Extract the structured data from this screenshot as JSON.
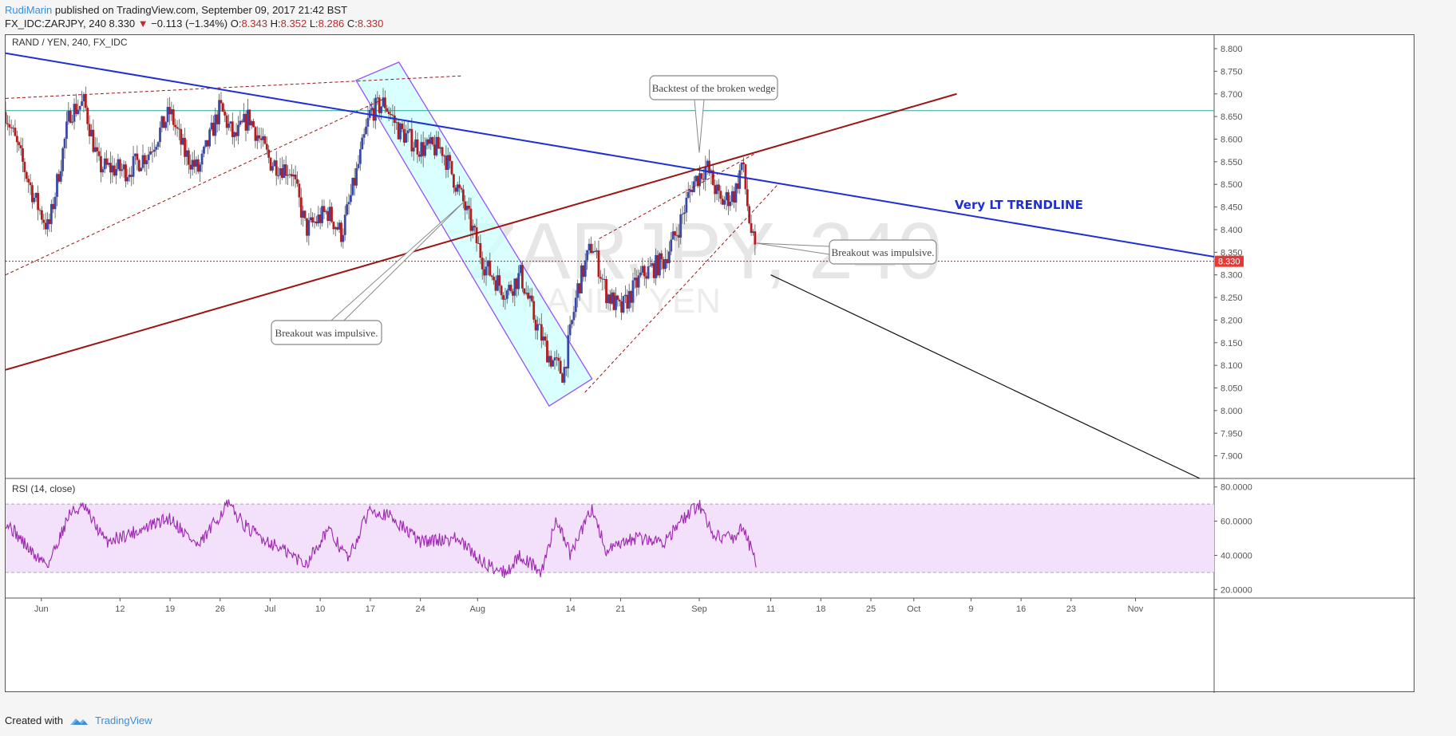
{
  "header": {
    "author": "RudiMarin",
    "published": "published on TradingView.com, September 09, 2017 21:42 BST",
    "symbol_line": "FX_IDC:ZARJPY, 240",
    "last": "8.330",
    "change": "−0.113 (−1.34%)",
    "o_label": "O:",
    "o": "8.343",
    "h_label": "H:",
    "h": "8.352",
    "l_label": "L:",
    "l": "8.286",
    "c_label": "C:",
    "c": "8.330"
  },
  "footer": {
    "created_with": "Created with",
    "brand": "TradingView"
  },
  "colors": {
    "up": "#3949ab",
    "down": "#b71c1c",
    "blue_trend": "#1f2fd4",
    "red_trend": "#9c1414",
    "channel": "#9b4dff",
    "channel_fill": "#ccffff",
    "rsi": "#9c27b0",
    "rsi_band": "#f3e0fb"
  },
  "chart_data": {
    "type": "candlestick",
    "title": "RAND / YEN, 240, FX_IDC",
    "watermark": "ZARJPY, 240",
    "watermark_sub": "RAND / YEN",
    "price_axis": {
      "ylim": [
        7.85,
        8.83
      ],
      "ticks": [
        "8.800",
        "8.750",
        "8.700",
        "8.650",
        "8.600",
        "8.550",
        "8.500",
        "8.450",
        "8.400",
        "8.350",
        "8.300",
        "8.250",
        "8.200",
        "8.150",
        "8.100",
        "8.050",
        "8.000",
        "7.950",
        "7.900"
      ]
    },
    "time_axis": {
      "labels": [
        "Jun",
        "12",
        "19",
        "26",
        "Jul",
        "10",
        "17",
        "24",
        "Aug",
        "14",
        "21",
        "Sep",
        "11",
        "18",
        "25",
        "Oct",
        "9",
        "16",
        "23",
        "Nov"
      ],
      "start": "2017-05-27",
      "end": "2017-11-12"
    },
    "last_price": "8.330",
    "approx_close_path": [
      {
        "date": "2017-05-27",
        "close": 8.66
      },
      {
        "date": "2017-05-31",
        "close": 8.47
      },
      {
        "date": "2017-06-02",
        "close": 8.4
      },
      {
        "date": "2017-06-05",
        "close": 8.66
      },
      {
        "date": "2017-06-07",
        "close": 8.68
      },
      {
        "date": "2017-06-09",
        "close": 8.54
      },
      {
        "date": "2017-06-13",
        "close": 8.53
      },
      {
        "date": "2017-06-16",
        "close": 8.57
      },
      {
        "date": "2017-06-19",
        "close": 8.66
      },
      {
        "date": "2017-06-21",
        "close": 8.57
      },
      {
        "date": "2017-06-23",
        "close": 8.53
      },
      {
        "date": "2017-06-26",
        "close": 8.67
      },
      {
        "date": "2017-06-28",
        "close": 8.6
      },
      {
        "date": "2017-06-30",
        "close": 8.65
      },
      {
        "date": "2017-07-03",
        "close": 8.55
      },
      {
        "date": "2017-07-06",
        "close": 8.53
      },
      {
        "date": "2017-07-08",
        "close": 8.4
      },
      {
        "date": "2017-07-11",
        "close": 8.44
      },
      {
        "date": "2017-07-13",
        "close": 8.39
      },
      {
        "date": "2017-07-15",
        "close": 8.52
      },
      {
        "date": "2017-07-17",
        "close": 8.66
      },
      {
        "date": "2017-07-19",
        "close": 8.68
      },
      {
        "date": "2017-07-21",
        "close": 8.62
      },
      {
        "date": "2017-07-24",
        "close": 8.58
      },
      {
        "date": "2017-07-27",
        "close": 8.58
      },
      {
        "date": "2017-07-30",
        "close": 8.46
      },
      {
        "date": "2017-08-02",
        "close": 8.32
      },
      {
        "date": "2017-08-05",
        "close": 8.26
      },
      {
        "date": "2017-08-07",
        "close": 8.3
      },
      {
        "date": "2017-08-09",
        "close": 8.2
      },
      {
        "date": "2017-08-11",
        "close": 8.12
      },
      {
        "date": "2017-08-13",
        "close": 8.08
      },
      {
        "date": "2017-08-15",
        "close": 8.27
      },
      {
        "date": "2017-08-17",
        "close": 8.37
      },
      {
        "date": "2017-08-19",
        "close": 8.26
      },
      {
        "date": "2017-08-21",
        "close": 8.22
      },
      {
        "date": "2017-08-24",
        "close": 8.3
      },
      {
        "date": "2017-08-27",
        "close": 8.33
      },
      {
        "date": "2017-08-29",
        "close": 8.4
      },
      {
        "date": "2017-08-31",
        "close": 8.5
      },
      {
        "date": "2017-09-02",
        "close": 8.54
      },
      {
        "date": "2017-09-04",
        "close": 8.46
      },
      {
        "date": "2017-09-06",
        "close": 8.48
      },
      {
        "date": "2017-09-07",
        "close": 8.55
      },
      {
        "date": "2017-09-08",
        "close": 8.42
      },
      {
        "date": "2017-09-09",
        "close": 8.33
      }
    ],
    "trendlines": [
      {
        "name": "blue",
        "from": {
          "date": "2017-05-27",
          "price": 8.79
        },
        "to": {
          "date": "2017-11-12",
          "price": 8.34
        }
      },
      {
        "name": "red",
        "from": {
          "date": "2017-05-27",
          "price": 8.09
        },
        "to": {
          "date": "2017-10-07",
          "price": 8.7
        }
      },
      {
        "name": "black",
        "from": {
          "date": "2017-09-11",
          "price": 8.3
        },
        "to": {
          "date": "2017-11-10",
          "price": 7.85
        }
      }
    ],
    "channel": [
      {
        "date": "2017-07-15",
        "price": 8.73
      },
      {
        "date": "2017-07-21",
        "price": 8.77
      },
      {
        "date": "2017-08-17",
        "price": 8.07
      },
      {
        "date": "2017-08-11",
        "price": 8.01
      }
    ],
    "dashed_lines": [
      {
        "from": {
          "date": "2017-05-27",
          "price": 8.3
        },
        "to": {
          "date": "2017-07-19",
          "price": 8.69
        }
      },
      {
        "from": {
          "date": "2017-05-27",
          "price": 8.69
        },
        "to": {
          "date": "2017-07-30",
          "price": 8.74
        }
      },
      {
        "from": {
          "date": "2017-08-16",
          "price": 8.04
        },
        "to": {
          "date": "2017-09-12",
          "price": 8.5
        }
      },
      {
        "from": {
          "date": "2017-08-18",
          "price": 8.38
        },
        "to": {
          "date": "2017-09-09",
          "price": 8.57
        }
      }
    ],
    "horizontal_lines": [
      {
        "price": 8.663,
        "color": "#26a69a"
      },
      {
        "price": 8.33,
        "color": "#b71c1c"
      }
    ],
    "annotations": [
      {
        "text": "Backtest of the broken wedge",
        "anchor": {
          "date": "2017-09-01",
          "price": 8.57
        }
      },
      {
        "text": "Very LT TRENDLINE"
      },
      {
        "text": "Breakout was impulsive.",
        "anchor": {
          "date": "2017-09-09",
          "price": 8.37
        }
      },
      {
        "text": "Breakout was impulsive.",
        "anchor": {
          "date": "2017-07-30",
          "price": 8.46
        }
      }
    ],
    "rsi": {
      "title": "RSI (14, close)",
      "ylim": [
        15,
        85
      ],
      "band": [
        30,
        70
      ],
      "ticks": [
        "80.0000",
        "60.0000",
        "40.0000",
        "20.0000"
      ],
      "approx_path": [
        {
          "date": "2017-05-27",
          "value": 60
        },
        {
          "date": "2017-05-31",
          "value": 40
        },
        {
          "date": "2017-06-02",
          "value": 35
        },
        {
          "date": "2017-06-05",
          "value": 65
        },
        {
          "date": "2017-06-07",
          "value": 68
        },
        {
          "date": "2017-06-10",
          "value": 48
        },
        {
          "date": "2017-06-15",
          "value": 55
        },
        {
          "date": "2017-06-19",
          "value": 62
        },
        {
          "date": "2017-06-23",
          "value": 45
        },
        {
          "date": "2017-06-27",
          "value": 70
        },
        {
          "date": "2017-06-30",
          "value": 55
        },
        {
          "date": "2017-07-04",
          "value": 45
        },
        {
          "date": "2017-07-08",
          "value": 35
        },
        {
          "date": "2017-07-11",
          "value": 55
        },
        {
          "date": "2017-07-14",
          "value": 38
        },
        {
          "date": "2017-07-17",
          "value": 68
        },
        {
          "date": "2017-07-20",
          "value": 62
        },
        {
          "date": "2017-07-24",
          "value": 48
        },
        {
          "date": "2017-07-29",
          "value": 50
        },
        {
          "date": "2017-08-02",
          "value": 35
        },
        {
          "date": "2017-08-05",
          "value": 30
        },
        {
          "date": "2017-08-07",
          "value": 40
        },
        {
          "date": "2017-08-10",
          "value": 30
        },
        {
          "date": "2017-08-12",
          "value": 62
        },
        {
          "date": "2017-08-14",
          "value": 40
        },
        {
          "date": "2017-08-17",
          "value": 68
        },
        {
          "date": "2017-08-19",
          "value": 42
        },
        {
          "date": "2017-08-23",
          "value": 50
        },
        {
          "date": "2017-08-27",
          "value": 48
        },
        {
          "date": "2017-08-30",
          "value": 62
        },
        {
          "date": "2017-09-01",
          "value": 70
        },
        {
          "date": "2017-09-03",
          "value": 52
        },
        {
          "date": "2017-09-06",
          "value": 50
        },
        {
          "date": "2017-09-07",
          "value": 58
        },
        {
          "date": "2017-09-09",
          "value": 35
        }
      ]
    }
  }
}
